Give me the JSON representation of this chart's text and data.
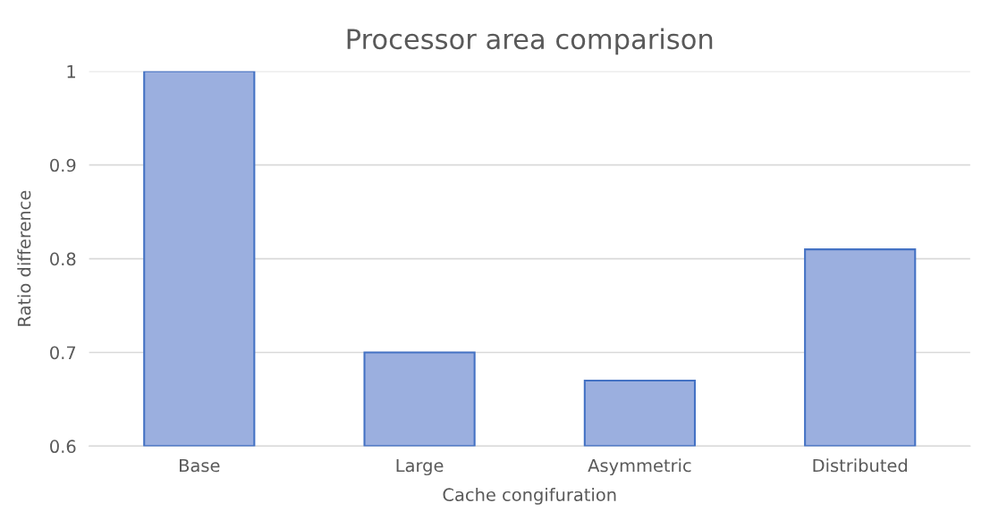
{
  "chart_data": {
    "type": "bar",
    "title": "Processor area comparison",
    "xlabel": "Cache congifuration",
    "ylabel": "Ratio difference",
    "categories": [
      "Base",
      "Large",
      "Asymmetric",
      "Distributed"
    ],
    "values": [
      1.0,
      0.7,
      0.67,
      0.81
    ],
    "color": "#9bafdf",
    "ylim": [
      0.6,
      1
    ],
    "yticks": [
      0.6,
      0.7,
      0.8,
      0.9,
      1
    ],
    "grid": "y",
    "legend": false
  }
}
